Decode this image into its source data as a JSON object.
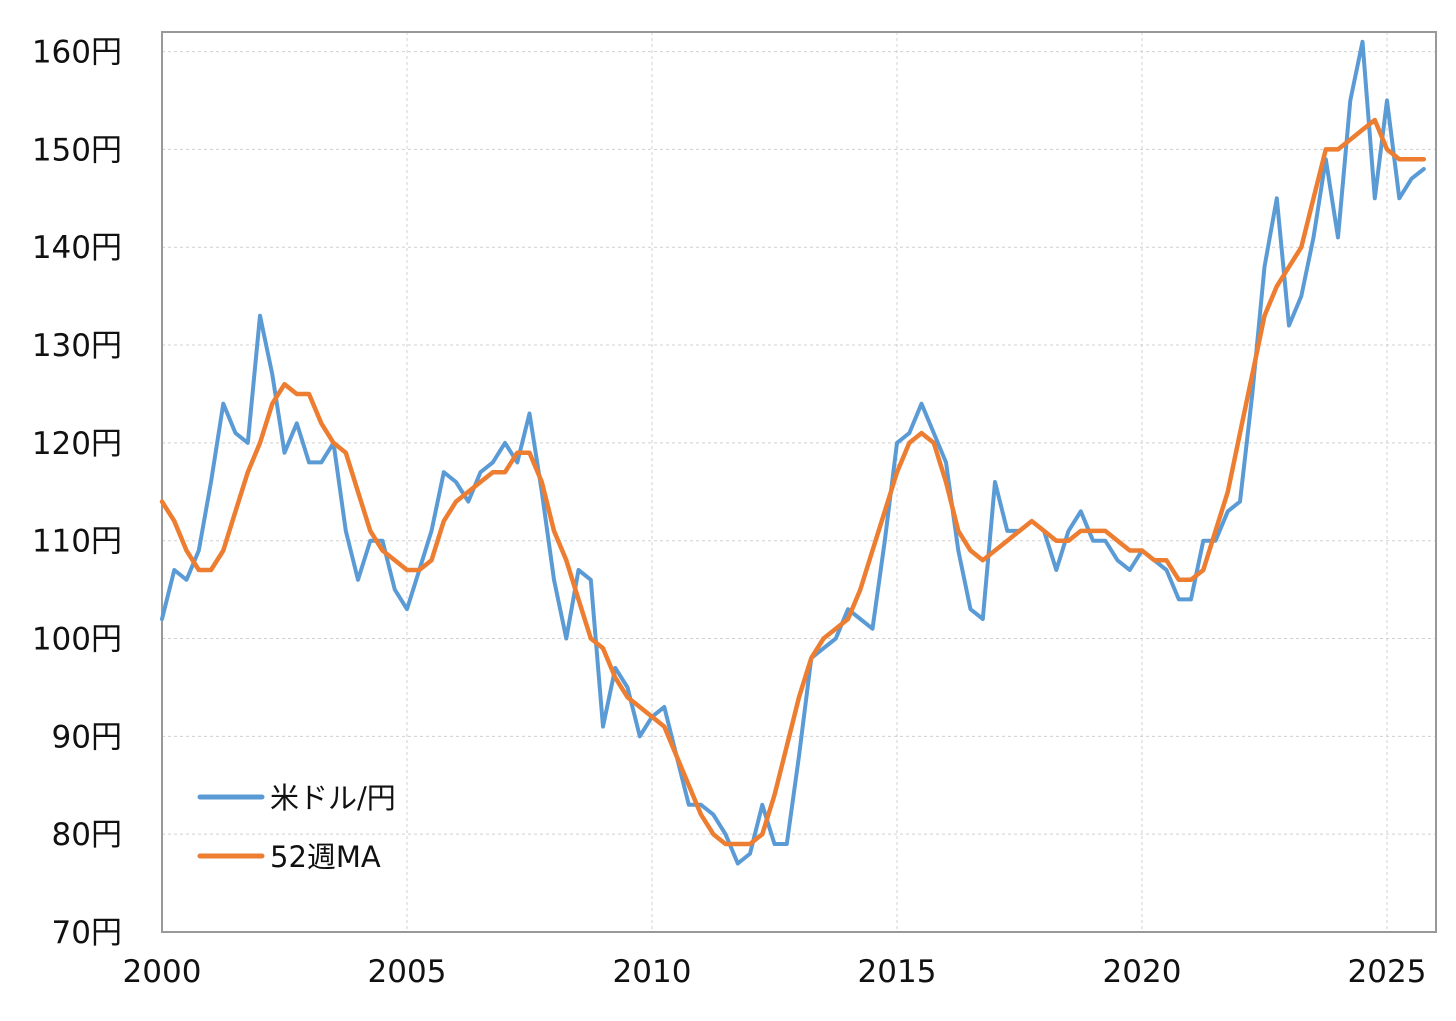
{
  "chart_data": {
    "type": "line",
    "title": "",
    "xlabel": "",
    "ylabel": "",
    "xlim": [
      2000,
      2026
    ],
    "ylim": [
      70,
      162
    ],
    "grid": true,
    "legend_position": "bottom-left",
    "x_ticks": [
      2000,
      2005,
      2010,
      2015,
      2020,
      2025
    ],
    "x_tick_labels": [
      "2000",
      "2005",
      "2010",
      "2015",
      "2020",
      "2025"
    ],
    "y_ticks": [
      70,
      80,
      90,
      100,
      110,
      120,
      130,
      140,
      150,
      160
    ],
    "y_tick_labels": [
      "70円",
      "80円",
      "90円",
      "100円",
      "110円",
      "120円",
      "130円",
      "140円",
      "150円",
      "160円"
    ],
    "series": [
      {
        "name": "米ドル/円",
        "color": "#5b9bd5",
        "x": [
          2000.0,
          2000.25,
          2000.5,
          2000.75,
          2001.0,
          2001.25,
          2001.5,
          2001.75,
          2002.0,
          2002.25,
          2002.5,
          2002.75,
          2003.0,
          2003.25,
          2003.5,
          2003.75,
          2004.0,
          2004.25,
          2004.5,
          2004.75,
          2005.0,
          2005.25,
          2005.5,
          2005.75,
          2006.0,
          2006.25,
          2006.5,
          2006.75,
          2007.0,
          2007.25,
          2007.5,
          2007.75,
          2008.0,
          2008.25,
          2008.5,
          2008.75,
          2009.0,
          2009.25,
          2009.5,
          2009.75,
          2010.0,
          2010.25,
          2010.5,
          2010.75,
          2011.0,
          2011.25,
          2011.5,
          2011.75,
          2012.0,
          2012.25,
          2012.5,
          2012.75,
          2013.0,
          2013.25,
          2013.5,
          2013.75,
          2014.0,
          2014.25,
          2014.5,
          2014.75,
          2015.0,
          2015.25,
          2015.5,
          2015.75,
          2016.0,
          2016.25,
          2016.5,
          2016.75,
          2017.0,
          2017.25,
          2017.5,
          2017.75,
          2018.0,
          2018.25,
          2018.5,
          2018.75,
          2019.0,
          2019.25,
          2019.5,
          2019.75,
          2020.0,
          2020.25,
          2020.5,
          2020.75,
          2021.0,
          2021.25,
          2021.5,
          2021.75,
          2022.0,
          2022.25,
          2022.5,
          2022.75,
          2023.0,
          2023.25,
          2023.5,
          2023.75,
          2024.0,
          2024.25,
          2024.5,
          2024.75,
          2025.0,
          2025.25,
          2025.5,
          2025.75
        ],
        "values": [
          102,
          107,
          106,
          109,
          116,
          124,
          121,
          120,
          133,
          127,
          119,
          122,
          118,
          118,
          120,
          111,
          106,
          110,
          110,
          105,
          103,
          107,
          111,
          117,
          116,
          114,
          117,
          118,
          120,
          118,
          123,
          115,
          106,
          100,
          107,
          106,
          91,
          97,
          95,
          90,
          92,
          93,
          88,
          83,
          83,
          82,
          80,
          77,
          78,
          83,
          79,
          79,
          88,
          98,
          99,
          100,
          103,
          102,
          101,
          110,
          120,
          121,
          124,
          121,
          118,
          109,
          103,
          102,
          116,
          111,
          111,
          112,
          111,
          107,
          111,
          113,
          110,
          110,
          108,
          107,
          109,
          108,
          107,
          104,
          104,
          110,
          110,
          113,
          114,
          125,
          138,
          145,
          132,
          135,
          141,
          149,
          141,
          155,
          161,
          145,
          155,
          145,
          147,
          148
        ]
      },
      {
        "name": "52週MA",
        "color": "#ed7d31",
        "x": [
          2000.0,
          2000.25,
          2000.5,
          2000.75,
          2001.0,
          2001.25,
          2001.5,
          2001.75,
          2002.0,
          2002.25,
          2002.5,
          2002.75,
          2003.0,
          2003.25,
          2003.5,
          2003.75,
          2004.0,
          2004.25,
          2004.5,
          2004.75,
          2005.0,
          2005.25,
          2005.5,
          2005.75,
          2006.0,
          2006.25,
          2006.5,
          2006.75,
          2007.0,
          2007.25,
          2007.5,
          2007.75,
          2008.0,
          2008.25,
          2008.5,
          2008.75,
          2009.0,
          2009.25,
          2009.5,
          2009.75,
          2010.0,
          2010.25,
          2010.5,
          2010.75,
          2011.0,
          2011.25,
          2011.5,
          2011.75,
          2012.0,
          2012.25,
          2012.5,
          2012.75,
          2013.0,
          2013.25,
          2013.5,
          2013.75,
          2014.0,
          2014.25,
          2014.5,
          2014.75,
          2015.0,
          2015.25,
          2015.5,
          2015.75,
          2016.0,
          2016.25,
          2016.5,
          2016.75,
          2017.0,
          2017.25,
          2017.5,
          2017.75,
          2018.0,
          2018.25,
          2018.5,
          2018.75,
          2019.0,
          2019.25,
          2019.5,
          2019.75,
          2020.0,
          2020.25,
          2020.5,
          2020.75,
          2021.0,
          2021.25,
          2021.5,
          2021.75,
          2022.0,
          2022.25,
          2022.5,
          2022.75,
          2023.0,
          2023.25,
          2023.5,
          2023.75,
          2024.0,
          2024.25,
          2024.5,
          2024.75,
          2025.0,
          2025.25,
          2025.5,
          2025.75
        ],
        "values": [
          114,
          112,
          109,
          107,
          107,
          109,
          113,
          117,
          120,
          124,
          126,
          125,
          125,
          122,
          120,
          119,
          115,
          111,
          109,
          108,
          107,
          107,
          108,
          112,
          114,
          115,
          116,
          117,
          117,
          119,
          119,
          116,
          111,
          108,
          104,
          100,
          99,
          96,
          94,
          93,
          92,
          91,
          88,
          85,
          82,
          80,
          79,
          79,
          79,
          80,
          84,
          89,
          94,
          98,
          100,
          101,
          102,
          105,
          109,
          113,
          117,
          120,
          121,
          120,
          116,
          111,
          109,
          108,
          109,
          110,
          111,
          112,
          111,
          110,
          110,
          111,
          111,
          111,
          110,
          109,
          109,
          108,
          108,
          106,
          106,
          107,
          111,
          115,
          121,
          127,
          133,
          136,
          138,
          140,
          145,
          150,
          150,
          151,
          152,
          153,
          150,
          149,
          149,
          149
        ]
      }
    ]
  }
}
